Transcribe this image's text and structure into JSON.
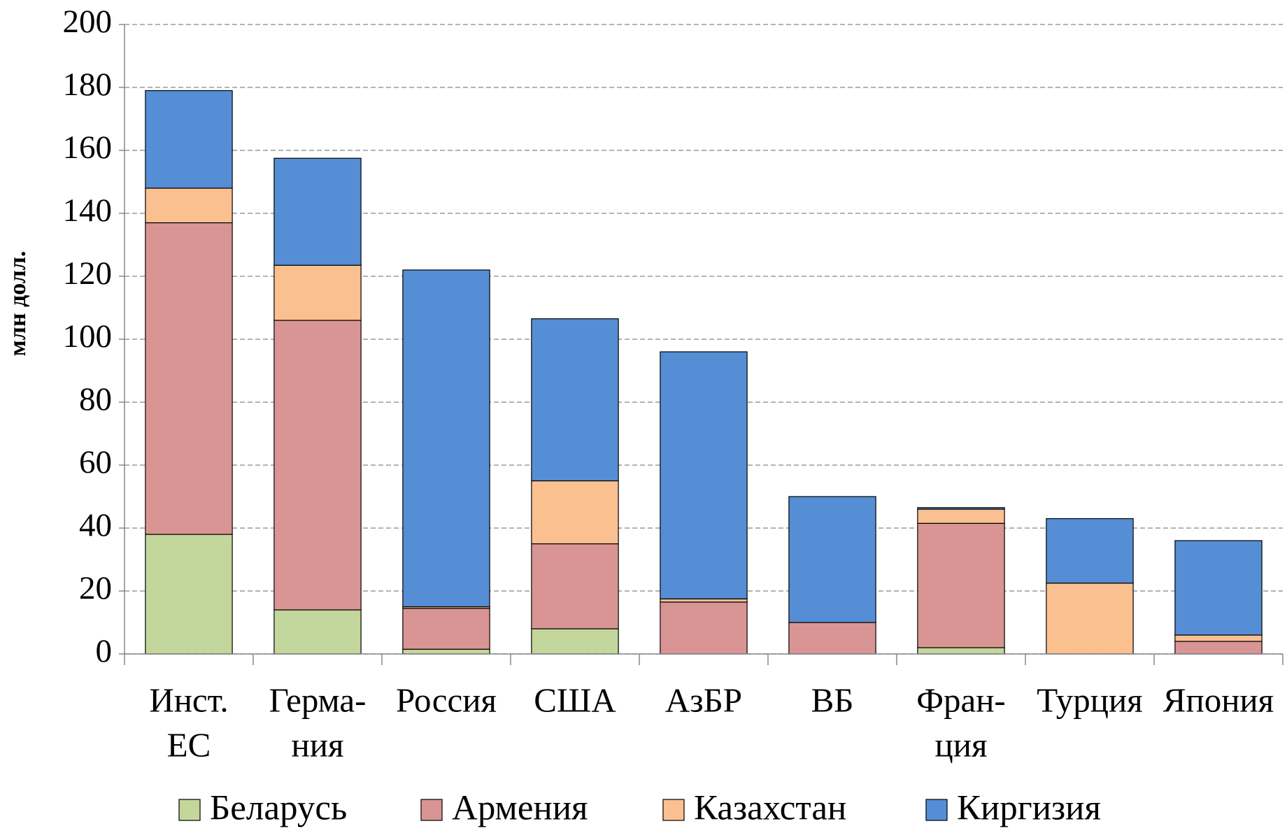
{
  "chart_data": {
    "type": "stacked_bar",
    "ylabel": "млн долл.",
    "categories": [
      [
        "Инст.",
        "ЕС"
      ],
      [
        "Герма-",
        "ния"
      ],
      [
        "Россия"
      ],
      [
        "США"
      ],
      [
        "АзБР"
      ],
      [
        "ВБ"
      ],
      [
        "Фран-",
        "ция"
      ],
      [
        "Турция"
      ],
      [
        "Япония"
      ]
    ],
    "series": [
      {
        "name": "Беларусь",
        "color": "#c3d69b",
        "values": [
          38,
          14,
          1.5,
          8,
          0,
          0,
          2,
          0,
          0
        ]
      },
      {
        "name": "Армения",
        "color": "#d99594",
        "values": [
          99,
          92,
          13,
          27,
          16.5,
          10,
          39.5,
          0,
          4
        ]
      },
      {
        "name": "Казахстан",
        "color": "#fac090",
        "values": [
          11,
          17.5,
          0.5,
          20,
          1,
          0,
          4.5,
          22.5,
          2
        ]
      },
      {
        "name": "Киргизия",
        "color": "#558ed5",
        "values": [
          31,
          34,
          107,
          51.5,
          78.5,
          40,
          0.5,
          20.5,
          30
        ]
      }
    ],
    "ylim": [
      0,
      200
    ],
    "yticks": [
      0,
      20,
      40,
      60,
      80,
      100,
      120,
      140,
      160,
      180,
      200
    ],
    "grid": true,
    "legend": "bottom"
  }
}
